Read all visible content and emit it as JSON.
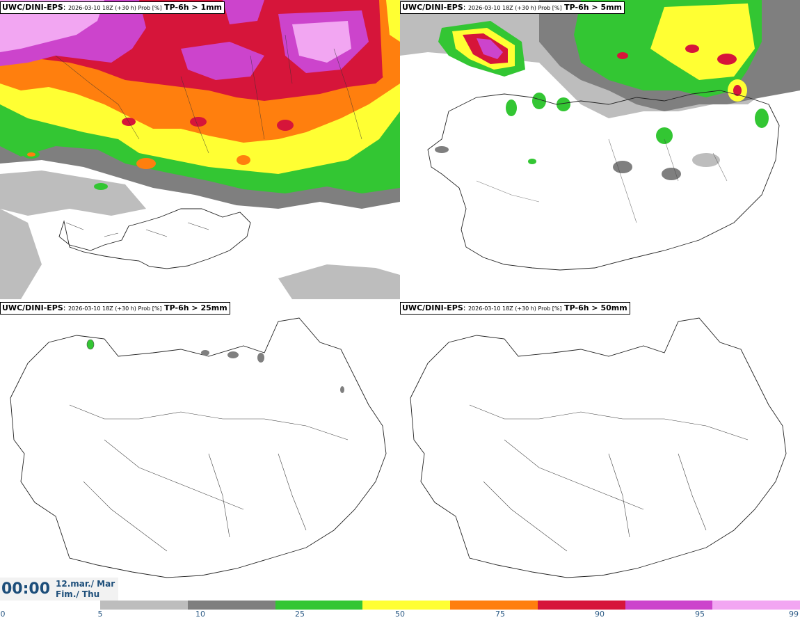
{
  "panels": [
    {
      "model": "UWC/DINI-EPS",
      "run": "2026-03-10 18Z (+30 h) Prob [%]",
      "param": "TP-6h > 1mm"
    },
    {
      "model": "UWC/DINI-EPS",
      "run": "2026-03-10 18Z (+30 h) Prob [%]",
      "param": "TP-6h > 5mm"
    },
    {
      "model": "UWC/DINI-EPS",
      "run": "2026-03-10 18Z (+30 h) Prob [%]",
      "param": "TP-6h > 25mm"
    },
    {
      "model": "UWC/DINI-EPS",
      "run": "2026-03-10 18Z (+30 h) Prob [%]",
      "param": "TP-6h > 50mm"
    }
  ],
  "time": {
    "hour": "00:00",
    "date": "12.mar./ Mar",
    "weekday": "Fim./ Thu"
  },
  "colorbar": {
    "ticks": [
      "0",
      "5",
      "10",
      "25",
      "50",
      "75",
      "90",
      "95",
      "99"
    ],
    "colors": [
      "#ffffff",
      "#bdbdbd",
      "#7f7f7f",
      "#33c633",
      "#ffff33",
      "#ff7f0e",
      "#d6153a",
      "#cc44cc",
      "#f2a6f2"
    ]
  }
}
